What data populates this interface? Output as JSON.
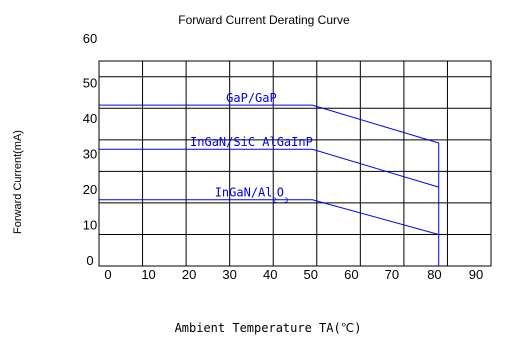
{
  "chart_data": {
    "type": "line",
    "title": "Forward Current Derating Curve",
    "xlabel": "Ambient Temperature TA(℃)",
    "ylabel": "Forward Current(mA)",
    "xlim": [
      0,
      90
    ],
    "ylim": [
      -5,
      60
    ],
    "x_ticks": [
      "0",
      "10",
      "20",
      "30",
      "40",
      "50",
      "60",
      "70",
      "80",
      "90"
    ],
    "y_ticks": [
      "60",
      "50",
      "40",
      "30",
      "20",
      "10",
      "0"
    ],
    "grid": true,
    "colors": {
      "series": "#0000ee",
      "grid": "#000000"
    },
    "series": [
      {
        "name": "GaP/GaP",
        "x": [
          0,
          49,
          78,
          78
        ],
        "y": [
          46,
          46,
          34,
          -5
        ]
      },
      {
        "name": "InGaN/SiC AlGaInP",
        "x": [
          0,
          49,
          78
        ],
        "y": [
          32,
          32,
          20
        ]
      },
      {
        "name": "InGaN/Al2O3",
        "x": [
          0,
          49,
          78
        ],
        "y": [
          16,
          16,
          5
        ]
      }
    ],
    "annotations": [
      {
        "text": "GaP/GaP",
        "x": 35,
        "y": 47
      },
      {
        "text": "InGaN/SiC AlGaInP",
        "x": 35,
        "y": 33
      },
      {
        "text": "InGaN/Al",
        "x": 35,
        "y": 17,
        "subscripts": [
          "2",
          "3"
        ],
        "suffix": "O"
      }
    ]
  }
}
